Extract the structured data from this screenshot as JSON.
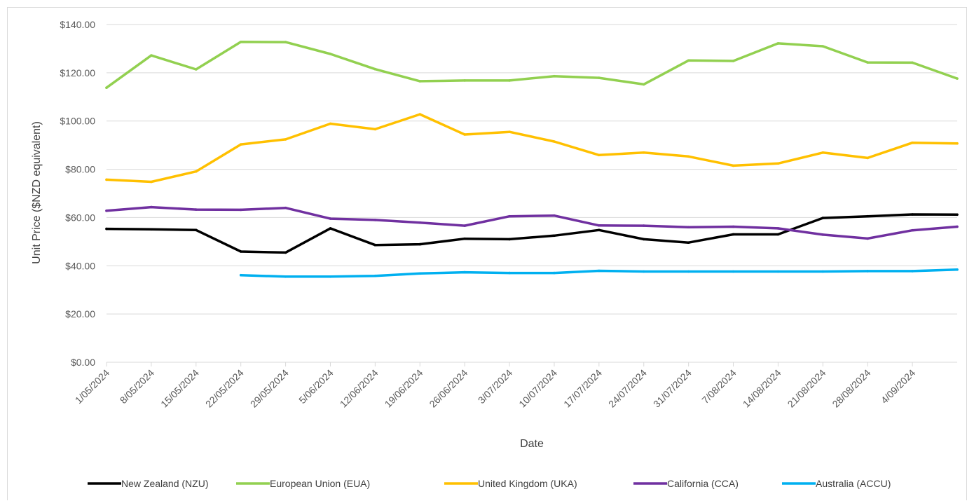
{
  "chart_data": {
    "type": "line",
    "xlabel": "Date",
    "ylabel": "Unit Price ($NZD equivalent)",
    "ylim": [
      0,
      140
    ],
    "y_step": 20,
    "y_tick_labels": [
      "$0.00",
      "$20.00",
      "$40.00",
      "$60.00",
      "$80.00",
      "$100.00",
      "$120.00",
      "$140.00"
    ],
    "x_range": [
      "2024-05-01",
      "2024-09-11"
    ],
    "x_tick_labels": [
      "1/05/2024",
      "8/05/2024",
      "15/05/2024",
      "22/05/2024",
      "29/05/2024",
      "5/06/2024",
      "12/06/2024",
      "19/06/2024",
      "26/06/2024",
      "3/07/2024",
      "10/07/2024",
      "17/07/2024",
      "24/07/2024",
      "31/07/2024",
      "7/08/2024",
      "14/08/2024",
      "21/08/2024",
      "28/08/2024",
      "4/09/2024"
    ],
    "grid": "horizontal",
    "legend_position": "bottom",
    "series": [
      {
        "name": "New Zealand (NZU)",
        "color": "#000000",
        "points": [
          [
            "2024-05-01",
            55.3
          ],
          [
            "2024-05-08",
            55.1
          ],
          [
            "2024-05-15",
            54.8
          ],
          [
            "2024-05-22",
            45.9
          ],
          [
            "2024-05-29",
            45.5
          ],
          [
            "2024-06-05",
            55.5
          ],
          [
            "2024-06-12",
            48.6
          ],
          [
            "2024-06-19",
            48.9
          ],
          [
            "2024-06-26",
            51.2
          ],
          [
            "2024-07-03",
            51
          ],
          [
            "2024-07-10",
            52.5
          ],
          [
            "2024-07-17",
            54.8
          ],
          [
            "2024-07-24",
            51
          ],
          [
            "2024-07-31",
            49.6
          ],
          [
            "2024-08-07",
            53
          ],
          [
            "2024-08-14",
            53
          ],
          [
            "2024-08-21",
            59.8
          ],
          [
            "2024-08-28",
            60.5
          ],
          [
            "2024-09-04",
            61.3
          ],
          [
            "2024-09-11",
            61.2
          ]
        ]
      },
      {
        "name": "European Union (EUA)",
        "color": "#92d050",
        "points": [
          [
            "2024-05-01",
            113.8
          ],
          [
            "2024-05-08",
            127.2
          ],
          [
            "2024-05-15",
            121.4
          ],
          [
            "2024-05-22",
            132.8
          ],
          [
            "2024-05-29",
            132.7
          ],
          [
            "2024-06-05",
            127.8
          ],
          [
            "2024-06-12",
            121.5
          ],
          [
            "2024-06-19",
            116.5
          ],
          [
            "2024-06-26",
            116.8
          ],
          [
            "2024-07-03",
            116.8
          ],
          [
            "2024-07-10",
            118.6
          ],
          [
            "2024-07-17",
            117.9
          ],
          [
            "2024-07-24",
            115.2
          ],
          [
            "2024-07-31",
            125.1
          ],
          [
            "2024-08-07",
            124.9
          ],
          [
            "2024-08-14",
            132.2
          ],
          [
            "2024-08-21",
            131
          ],
          [
            "2024-08-28",
            124.3
          ],
          [
            "2024-09-04",
            124.2
          ],
          [
            "2024-09-11",
            117.6
          ]
        ]
      },
      {
        "name": "United Kingdom (UKA)",
        "color": "#ffc000",
        "points": [
          [
            "2024-05-01",
            75.7
          ],
          [
            "2024-05-08",
            74.8
          ],
          [
            "2024-05-15",
            79.1
          ],
          [
            "2024-05-22",
            90.3
          ],
          [
            "2024-05-29",
            92.4
          ],
          [
            "2024-06-05",
            98.9
          ],
          [
            "2024-06-12",
            96.6
          ],
          [
            "2024-06-19",
            102.8
          ],
          [
            "2024-06-26",
            94.4
          ],
          [
            "2024-07-03",
            95.5
          ],
          [
            "2024-07-10",
            91.5
          ],
          [
            "2024-07-17",
            85.9
          ],
          [
            "2024-07-24",
            86.9
          ],
          [
            "2024-07-31",
            85.3
          ],
          [
            "2024-08-07",
            81.5
          ],
          [
            "2024-08-14",
            82.4
          ],
          [
            "2024-08-21",
            86.9
          ],
          [
            "2024-08-28",
            84.7
          ],
          [
            "2024-09-04",
            91
          ],
          [
            "2024-09-11",
            90.7
          ]
        ]
      },
      {
        "name": "California (CCA)",
        "color": "#7030a0",
        "points": [
          [
            "2024-05-01",
            62.8
          ],
          [
            "2024-05-08",
            64.3
          ],
          [
            "2024-05-15",
            63.3
          ],
          [
            "2024-05-22",
            63.2
          ],
          [
            "2024-05-29",
            64
          ],
          [
            "2024-06-05",
            59.5
          ],
          [
            "2024-06-12",
            59
          ],
          [
            "2024-06-19",
            57.9
          ],
          [
            "2024-06-26",
            56.6
          ],
          [
            "2024-07-03",
            60.5
          ],
          [
            "2024-07-10",
            60.8
          ],
          [
            "2024-07-17",
            56.7
          ],
          [
            "2024-07-24",
            56.6
          ],
          [
            "2024-07-31",
            56
          ],
          [
            "2024-08-07",
            56.2
          ],
          [
            "2024-08-14",
            55.5
          ],
          [
            "2024-08-21",
            52.9
          ],
          [
            "2024-08-28",
            51.3
          ],
          [
            "2024-09-04",
            54.7
          ],
          [
            "2024-09-11",
            56.2
          ]
        ]
      },
      {
        "name": "Australia (ACCU)",
        "color": "#00b0f0",
        "points": [
          [
            "2024-05-22",
            36.1
          ],
          [
            "2024-05-29",
            35.5
          ],
          [
            "2024-06-05",
            35.5
          ],
          [
            "2024-06-12",
            35.8
          ],
          [
            "2024-06-19",
            36.8
          ],
          [
            "2024-06-26",
            37.3
          ],
          [
            "2024-07-03",
            37
          ],
          [
            "2024-07-10",
            37
          ],
          [
            "2024-07-17",
            37.9
          ],
          [
            "2024-07-24",
            37.6
          ],
          [
            "2024-07-31",
            37.6
          ],
          [
            "2024-08-07",
            37.6
          ],
          [
            "2024-08-14",
            37.6
          ],
          [
            "2024-08-21",
            37.6
          ],
          [
            "2024-08-28",
            37.8
          ],
          [
            "2024-09-04",
            37.8
          ],
          [
            "2024-09-11",
            38.4
          ]
        ]
      }
    ]
  }
}
